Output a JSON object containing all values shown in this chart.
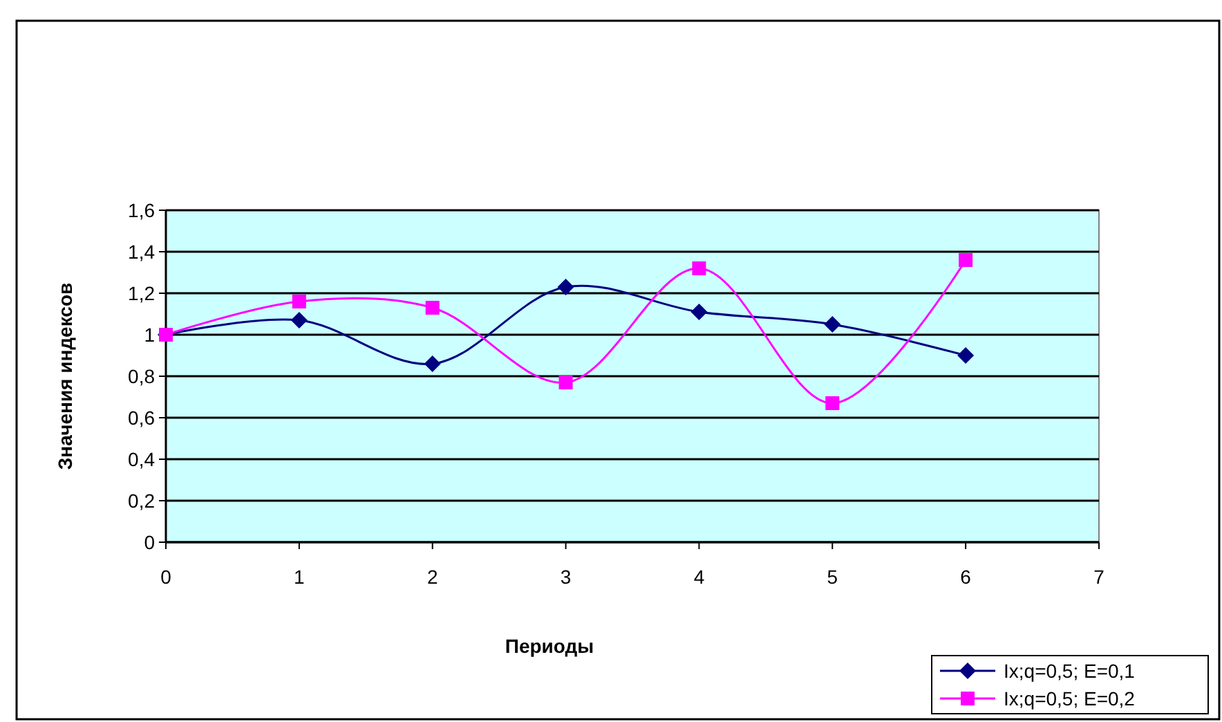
{
  "chart_data": {
    "type": "line",
    "xlabel": "Периоды",
    "ylabel": "Значения индексов",
    "x": [
      0,
      1,
      2,
      3,
      4,
      5,
      6
    ],
    "series": [
      {
        "name": "Ix;q=0,5; E=0,1",
        "color": "#000080",
        "marker": "diamond",
        "values": [
          1.0,
          1.07,
          0.86,
          1.23,
          1.11,
          1.05,
          0.9
        ]
      },
      {
        "name": "Ix;q=0,5; E=0,2",
        "color": "#ff00ff",
        "marker": "square",
        "values": [
          1.0,
          1.16,
          1.13,
          0.77,
          1.32,
          0.67,
          1.36
        ]
      }
    ],
    "xlim": [
      0,
      7
    ],
    "xticks": [
      0,
      1,
      2,
      3,
      4,
      5,
      6,
      7
    ],
    "ylim": [
      0,
      1.6
    ],
    "yticks": [
      0,
      {
        "value": 0.2,
        "label": "0,2"
      },
      {
        "value": 0.4,
        "label": "0,4"
      },
      {
        "value": 0.6,
        "label": "0,6"
      },
      {
        "value": 0.8,
        "label": "0,8"
      },
      1,
      {
        "value": 1.2,
        "label": "1,2"
      },
      {
        "value": 1.4,
        "label": "1,4"
      },
      {
        "value": 1.6,
        "label": "1,6"
      }
    ],
    "grid": "y",
    "legend": "bottom right"
  }
}
